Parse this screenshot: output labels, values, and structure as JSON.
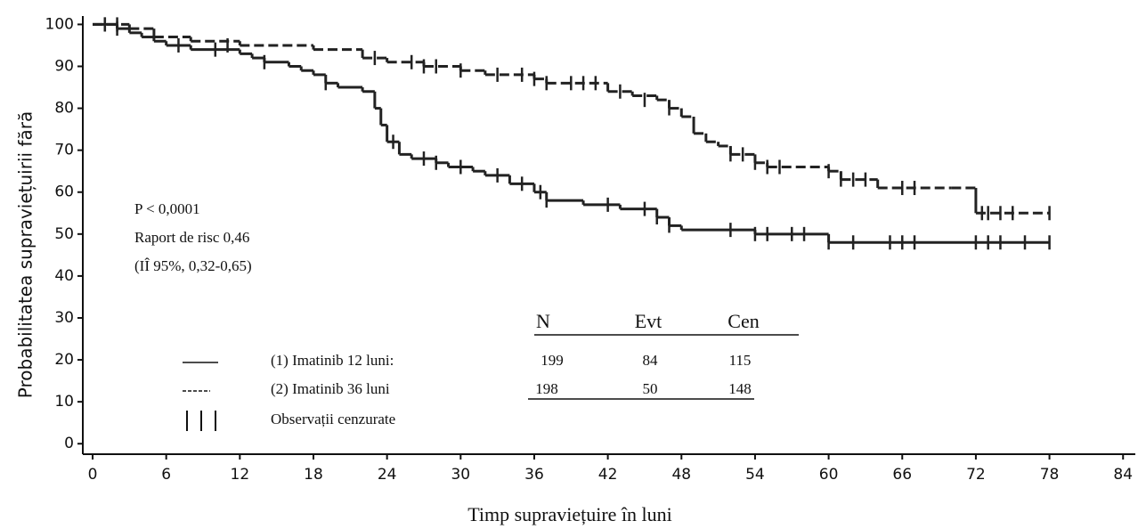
{
  "chart_data": {
    "type": "kaplan-meier",
    "y_label": "Probabilitatea supraviețuirii fără",
    "x_label": "Timp supraviețuire în luni",
    "annotations": [
      "P < 0,0001",
      "Raport de risc 0,46",
      "(IÎ 95%, 0,32-0,65)"
    ],
    "xlim": [
      -0.8,
      85
    ],
    "ylim": [
      -2.5,
      102
    ],
    "xticks": [
      0,
      6,
      12,
      18,
      24,
      30,
      36,
      42,
      48,
      54,
      60,
      66,
      72,
      78,
      84
    ],
    "yticks": [
      0,
      10,
      20,
      30,
      40,
      50,
      60,
      70,
      80,
      90,
      100
    ],
    "series": [
      {
        "name": "(1) Imatinib 12 luni:",
        "color": "#222222",
        "dash": false,
        "x": [
          0,
          2,
          3,
          4,
          5,
          6,
          8,
          12,
          13,
          14,
          16,
          17,
          18,
          19,
          20,
          22,
          23,
          23.5,
          24,
          25,
          26,
          28,
          29,
          31,
          32,
          34,
          36,
          37,
          40,
          43,
          46,
          47,
          48,
          54,
          60,
          78
        ],
        "values": [
          100,
          99,
          98,
          97,
          96,
          95,
          94,
          93,
          92,
          91,
          90,
          89,
          88,
          86,
          85,
          84,
          80,
          76,
          72,
          69,
          68,
          67,
          66,
          65,
          64,
          62,
          60,
          58,
          57,
          56,
          54,
          52,
          51,
          50,
          48,
          48
        ],
        "censored_x": [
          1,
          2,
          7,
          10,
          14,
          19,
          24.5,
          27,
          28,
          30,
          33,
          35,
          36.5,
          37,
          42,
          45,
          46,
          47,
          52,
          54,
          55,
          57,
          58,
          60,
          62,
          65,
          66,
          67,
          72,
          73,
          74,
          76,
          78
        ],
        "censored_y": [
          100,
          99,
          95,
          94,
          91,
          86,
          72,
          68,
          67,
          66,
          64,
          62,
          60,
          58,
          57,
          56,
          54,
          52,
          51,
          50,
          50,
          50,
          50,
          48,
          48,
          48,
          48,
          48,
          48,
          48,
          48,
          48,
          48
        ]
      },
      {
        "name": "(2) Imatinib 36 luni",
        "color": "#222222",
        "dash": true,
        "x": [
          0,
          3,
          5,
          8,
          12,
          18,
          22,
          24,
          27,
          30,
          32,
          36,
          37,
          42,
          44,
          46,
          47,
          48,
          49,
          50,
          51,
          52,
          54,
          55,
          60,
          61,
          64,
          70,
          72,
          78
        ],
        "values": [
          100,
          99,
          97,
          96,
          95,
          94,
          92,
          91,
          90,
          89,
          88,
          87,
          86,
          84,
          83,
          82,
          80,
          78,
          74,
          72,
          71,
          69,
          67,
          66,
          65,
          63,
          61,
          61,
          55,
          55
        ],
        "censored_x": [
          1,
          2,
          11,
          23,
          26,
          27,
          28,
          30,
          33,
          35,
          36,
          37,
          39,
          40,
          41,
          43,
          45,
          47,
          52,
          53,
          54,
          55,
          56,
          60,
          61,
          62,
          63,
          66,
          67,
          72.5,
          73,
          74,
          75,
          78
        ],
        "censored_y": [
          100,
          100,
          95,
          92,
          91,
          90,
          90,
          89,
          88,
          88,
          87,
          86,
          86,
          86,
          86,
          84,
          82,
          80,
          69,
          69,
          67,
          66,
          66,
          65,
          63,
          63,
          63,
          61,
          61,
          55,
          55,
          55,
          55,
          55
        ]
      }
    ],
    "censored_label": "Observații cenzurate",
    "table": {
      "columns": [
        "N",
        "Evt",
        "Cen"
      ],
      "rows": [
        [
          199,
          84,
          115
        ],
        [
          198,
          50,
          148
        ]
      ]
    }
  }
}
